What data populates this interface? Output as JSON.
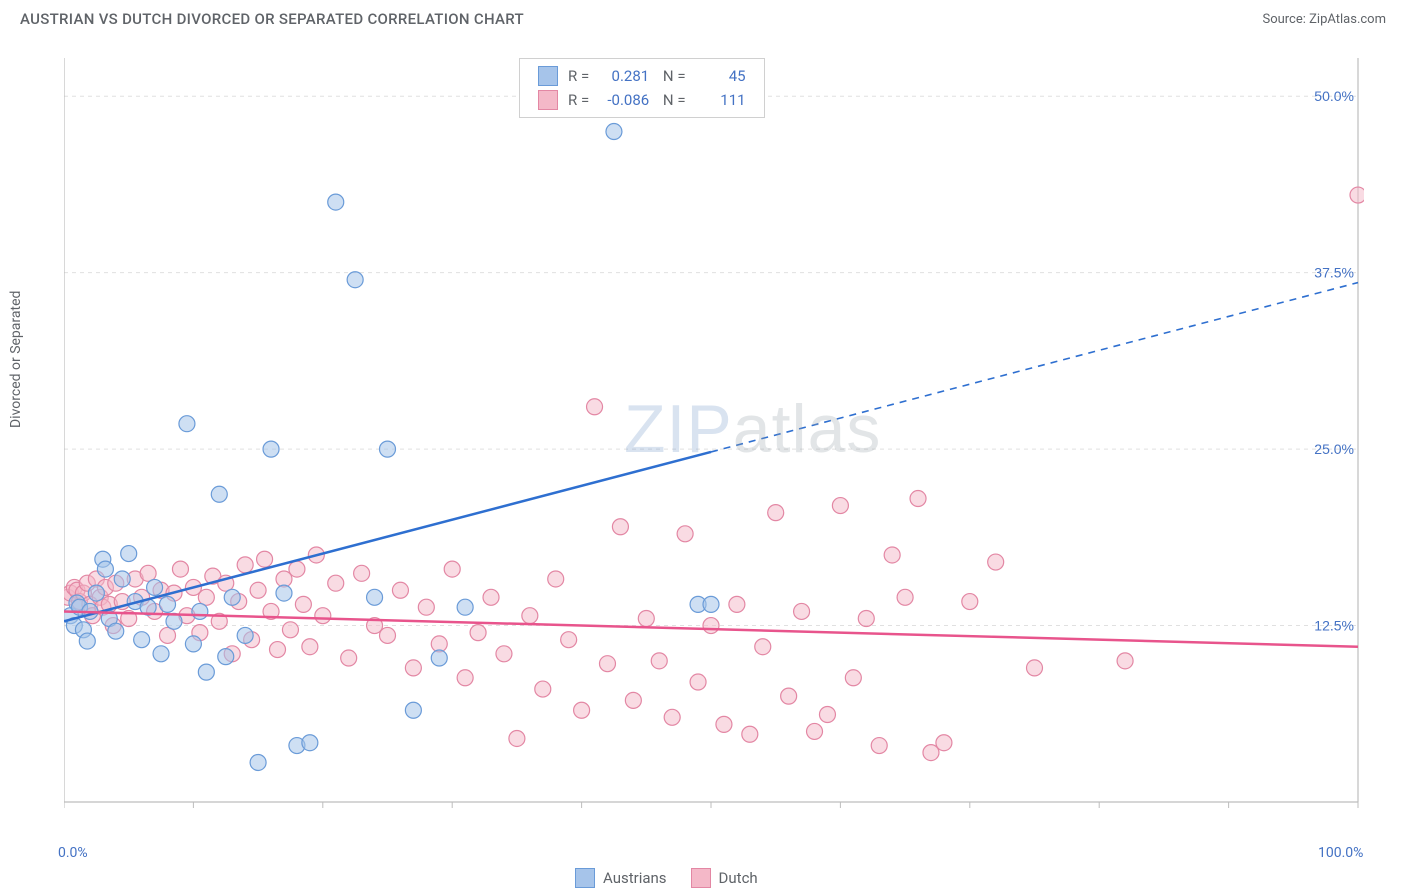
{
  "title": "AUSTRIAN VS DUTCH DIVORCED OR SEPARATED CORRELATION CHART",
  "source": "Source: ZipAtlas.com",
  "watermark": "ZIPatlas",
  "chart": {
    "type": "scatter",
    "y_axis_label": "Divorced or Separated",
    "xlim": [
      0,
      100
    ],
    "ylim": [
      0,
      52
    ],
    "x_ticks": [
      0,
      10,
      20,
      30,
      40,
      50,
      60,
      70,
      80,
      90,
      100
    ],
    "x_tick_labels_shown": {
      "0": "0.0%",
      "100": "100.0%"
    },
    "y_gridlines": [
      12.5,
      25.0,
      37.5,
      50.0
    ],
    "y_tick_labels": [
      "12.5%",
      "25.0%",
      "37.5%",
      "50.0%"
    ],
    "background_color": "#ffffff",
    "grid_color": "#e0e0e0",
    "axis_color": "#bdbdbd",
    "label_color": "#4472c4",
    "marker_radius": 8,
    "marker_stroke_width": 1.2,
    "line_width": 2.5,
    "series": [
      {
        "name": "Austrians",
        "fill": "#a6c4ea",
        "fill_opacity": 0.55,
        "stroke": "#6a9bd8",
        "line_color": "#2e6fd0",
        "R": 0.281,
        "N": 45,
        "trend": {
          "x0": 0,
          "y0": 12.8,
          "x_solid_end": 50,
          "y_solid_end": 24.8,
          "x1": 100,
          "y1": 36.8
        },
        "points": [
          [
            0.5,
            13.2
          ],
          [
            0.8,
            12.5
          ],
          [
            1.0,
            14.1
          ],
          [
            1.2,
            13.8
          ],
          [
            1.5,
            12.2
          ],
          [
            1.8,
            11.4
          ],
          [
            2.0,
            13.5
          ],
          [
            2.5,
            14.8
          ],
          [
            3.0,
            17.2
          ],
          [
            3.2,
            16.5
          ],
          [
            3.5,
            13.0
          ],
          [
            4.0,
            12.1
          ],
          [
            4.5,
            15.8
          ],
          [
            5.0,
            17.6
          ],
          [
            5.5,
            14.2
          ],
          [
            6.0,
            11.5
          ],
          [
            6.5,
            13.8
          ],
          [
            7.0,
            15.2
          ],
          [
            7.5,
            10.5
          ],
          [
            8.0,
            14.0
          ],
          [
            8.5,
            12.8
          ],
          [
            9.5,
            26.8
          ],
          [
            10.0,
            11.2
          ],
          [
            10.5,
            13.5
          ],
          [
            11.0,
            9.2
          ],
          [
            12.0,
            21.8
          ],
          [
            12.5,
            10.3
          ],
          [
            13.0,
            14.5
          ],
          [
            14.0,
            11.8
          ],
          [
            15.0,
            2.8
          ],
          [
            16.0,
            25.0
          ],
          [
            17.0,
            14.8
          ],
          [
            18.0,
            4.0
          ],
          [
            19.0,
            4.2
          ],
          [
            21.0,
            42.5
          ],
          [
            22.5,
            37.0
          ],
          [
            24.0,
            14.5
          ],
          [
            25.0,
            25.0
          ],
          [
            27.0,
            6.5
          ],
          [
            29.0,
            10.2
          ],
          [
            31.0,
            13.8
          ],
          [
            42.5,
            47.5
          ],
          [
            49.0,
            14.0
          ],
          [
            50.0,
            14.0
          ]
        ]
      },
      {
        "name": "Dutch",
        "fill": "#f4b8c8",
        "fill_opacity": 0.5,
        "stroke": "#e387a4",
        "line_color": "#e8548c",
        "R": -0.086,
        "N": 111,
        "trend": {
          "x0": 0,
          "y0": 13.5,
          "x_solid_end": 100,
          "y_solid_end": 11.0,
          "x1": 100,
          "y1": 11.0
        },
        "points": [
          [
            0.3,
            14.5
          ],
          [
            0.5,
            14.8
          ],
          [
            0.8,
            15.2
          ],
          [
            1.0,
            15.0
          ],
          [
            1.2,
            14.2
          ],
          [
            1.5,
            14.8
          ],
          [
            1.8,
            15.5
          ],
          [
            2.0,
            14.0
          ],
          [
            2.2,
            13.2
          ],
          [
            2.5,
            15.8
          ],
          [
            2.8,
            14.5
          ],
          [
            3.0,
            13.8
          ],
          [
            3.2,
            15.2
          ],
          [
            3.5,
            14.0
          ],
          [
            3.8,
            12.5
          ],
          [
            4.0,
            15.5
          ],
          [
            4.5,
            14.2
          ],
          [
            5.0,
            13.0
          ],
          [
            5.5,
            15.8
          ],
          [
            6.0,
            14.5
          ],
          [
            6.5,
            16.2
          ],
          [
            7.0,
            13.5
          ],
          [
            7.5,
            15.0
          ],
          [
            8.0,
            11.8
          ],
          [
            8.5,
            14.8
          ],
          [
            9.0,
            16.5
          ],
          [
            9.5,
            13.2
          ],
          [
            10.0,
            15.2
          ],
          [
            10.5,
            12.0
          ],
          [
            11.0,
            14.5
          ],
          [
            11.5,
            16.0
          ],
          [
            12.0,
            12.8
          ],
          [
            12.5,
            15.5
          ],
          [
            13.0,
            10.5
          ],
          [
            13.5,
            14.2
          ],
          [
            14.0,
            16.8
          ],
          [
            14.5,
            11.5
          ],
          [
            15.0,
            15.0
          ],
          [
            15.5,
            17.2
          ],
          [
            16.0,
            13.5
          ],
          [
            16.5,
            10.8
          ],
          [
            17.0,
            15.8
          ],
          [
            17.5,
            12.2
          ],
          [
            18.0,
            16.5
          ],
          [
            18.5,
            14.0
          ],
          [
            19.0,
            11.0
          ],
          [
            19.5,
            17.5
          ],
          [
            20.0,
            13.2
          ],
          [
            21.0,
            15.5
          ],
          [
            22.0,
            10.2
          ],
          [
            23.0,
            16.2
          ],
          [
            24.0,
            12.5
          ],
          [
            25.0,
            11.8
          ],
          [
            26.0,
            15.0
          ],
          [
            27.0,
            9.5
          ],
          [
            28.0,
            13.8
          ],
          [
            29.0,
            11.2
          ],
          [
            30.0,
            16.5
          ],
          [
            31.0,
            8.8
          ],
          [
            32.0,
            12.0
          ],
          [
            33.0,
            14.5
          ],
          [
            34.0,
            10.5
          ],
          [
            35.0,
            4.5
          ],
          [
            36.0,
            13.2
          ],
          [
            37.0,
            8.0
          ],
          [
            38.0,
            15.8
          ],
          [
            39.0,
            11.5
          ],
          [
            40.0,
            6.5
          ],
          [
            41.0,
            28.0
          ],
          [
            42.0,
            9.8
          ],
          [
            43.0,
            19.5
          ],
          [
            44.0,
            7.2
          ],
          [
            45.0,
            13.0
          ],
          [
            46.0,
            10.0
          ],
          [
            47.0,
            6.0
          ],
          [
            48.0,
            19.0
          ],
          [
            49.0,
            8.5
          ],
          [
            50.0,
            12.5
          ],
          [
            51.0,
            5.5
          ],
          [
            52.0,
            14.0
          ],
          [
            53.0,
            4.8
          ],
          [
            54.0,
            11.0
          ],
          [
            55.0,
            20.5
          ],
          [
            56.0,
            7.5
          ],
          [
            57.0,
            13.5
          ],
          [
            58.0,
            5.0
          ],
          [
            59.0,
            6.2
          ],
          [
            60.0,
            21.0
          ],
          [
            61.0,
            8.8
          ],
          [
            62.0,
            13.0
          ],
          [
            63.0,
            4.0
          ],
          [
            64.0,
            17.5
          ],
          [
            65.0,
            14.5
          ],
          [
            66.0,
            21.5
          ],
          [
            67.0,
            3.5
          ],
          [
            68.0,
            4.2
          ],
          [
            70.0,
            14.2
          ],
          [
            72.0,
            17.0
          ],
          [
            75.0,
            9.5
          ],
          [
            82.0,
            10.0
          ],
          [
            100.0,
            43.0
          ]
        ]
      }
    ]
  },
  "legend_bottom": [
    {
      "label": "Austrians",
      "fill": "#a6c4ea",
      "stroke": "#6a9bd8"
    },
    {
      "label": "Dutch",
      "fill": "#f4b8c8",
      "stroke": "#e387a4"
    }
  ]
}
